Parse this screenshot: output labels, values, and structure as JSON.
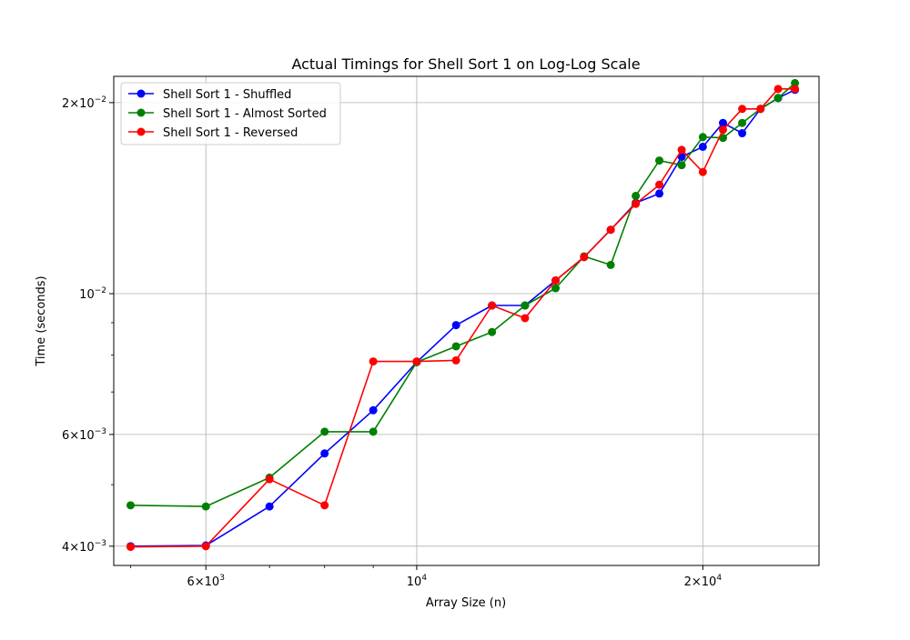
{
  "chart_data": {
    "type": "line",
    "title": "Actual Timings for Shell Sort 1 on Log-Log Scale",
    "xlabel": "Array Size (n)",
    "ylabel": "Time (seconds)",
    "xscale": "log",
    "yscale": "log",
    "xlim": [
      4800,
      26500
    ],
    "ylim": [
      0.00373,
      0.022
    ],
    "grid": "major",
    "legend": "top-left",
    "x_ticks": [
      {
        "value": 6000,
        "base": "6",
        "exp": "3"
      },
      {
        "value": 10000,
        "base": "10",
        "exp": "4"
      },
      {
        "value": 20000,
        "base": "2",
        "exp": "4"
      }
    ],
    "y_ticks": [
      {
        "value": 0.004,
        "base": "4",
        "exp": "−3"
      },
      {
        "value": 0.006,
        "base": "6",
        "exp": "−3"
      },
      {
        "value": 0.01,
        "base": "10",
        "exp": "−2"
      },
      {
        "value": 0.02,
        "base": "2",
        "exp": "−2"
      }
    ],
    "x_minor_ticks": [
      5000,
      7000,
      8000,
      9000
    ],
    "y_minor_ticks": [
      0.005,
      0.007,
      0.008,
      0.009
    ],
    "x": [
      5000,
      6000,
      7000,
      8000,
      9000,
      10000,
      11000,
      12000,
      13000,
      14000,
      15000,
      16000,
      17000,
      18000,
      19000,
      20000,
      21000,
      22000,
      23000,
      24000,
      25000
    ],
    "series": [
      {
        "name": "Shell Sort 1 - Shuffled",
        "color": "#0000ff",
        "values": [
          0.004,
          0.00401,
          0.00462,
          0.0056,
          0.00655,
          0.0078,
          0.00892,
          0.00958,
          0.00958,
          0.01049,
          0.01142,
          0.01261,
          0.0139,
          0.01438,
          0.01643,
          0.01704,
          0.01858,
          0.0179,
          0.01955,
          0.02034,
          0.02095
        ]
      },
      {
        "name": "Shell Sort 1 - Almost Sorted",
        "color": "#008000",
        "values": [
          0.00464,
          0.00462,
          0.00513,
          0.00606,
          0.00606,
          0.0078,
          0.00826,
          0.0087,
          0.00958,
          0.0102,
          0.01145,
          0.0111,
          0.01426,
          0.01621,
          0.01594,
          0.01765,
          0.0176,
          0.01858,
          0.01955,
          0.02034,
          0.02147
        ]
      },
      {
        "name": "Shell Sort 1 - Reversed",
        "color": "#ff0000",
        "values": [
          0.00399,
          0.004,
          0.0051,
          0.00464,
          0.00782,
          0.00782,
          0.00785,
          0.00958,
          0.00915,
          0.01049,
          0.01142,
          0.01261,
          0.01385,
          0.01485,
          0.01685,
          0.01555,
          0.01813,
          0.01955,
          0.01955,
          0.02102,
          0.02102
        ]
      }
    ]
  }
}
